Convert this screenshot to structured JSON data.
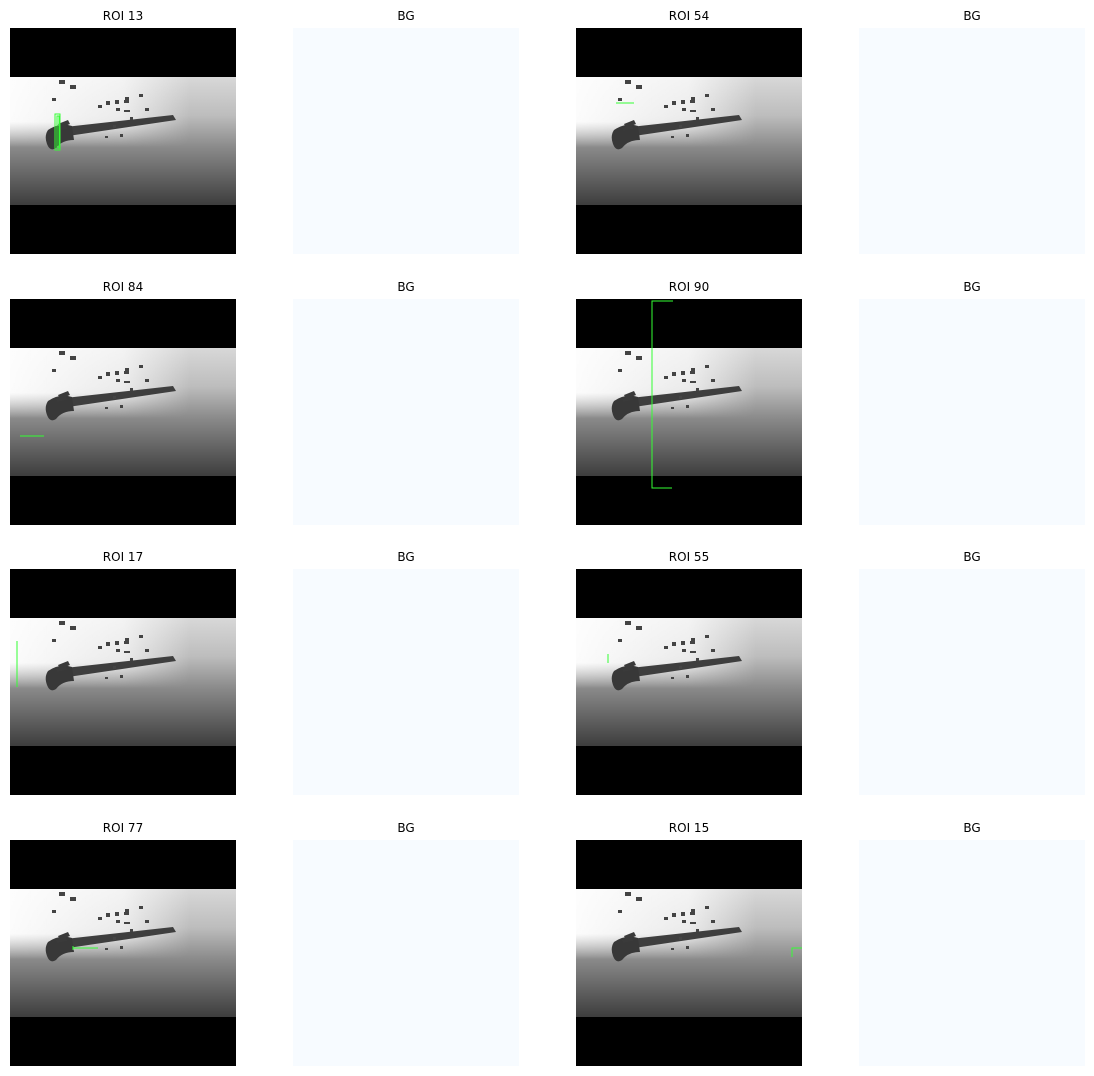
{
  "panels": [
    {
      "title": "ROI 13"
    },
    {
      "title": "BG"
    },
    {
      "title": "ROI 54"
    },
    {
      "title": "BG"
    },
    {
      "title": "ROI 84"
    },
    {
      "title": "BG"
    },
    {
      "title": "ROI 90"
    },
    {
      "title": "BG"
    },
    {
      "title": "ROI 17"
    },
    {
      "title": "BG"
    },
    {
      "title": "ROI 55"
    },
    {
      "title": "BG"
    },
    {
      "title": "ROI 77"
    },
    {
      "title": "BG"
    },
    {
      "title": "ROI 15"
    },
    {
      "title": "BG"
    }
  ]
}
